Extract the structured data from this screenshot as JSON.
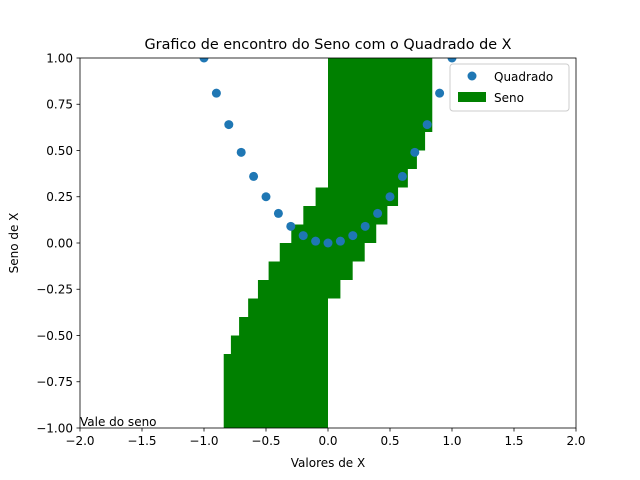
{
  "chart_data": {
    "type": "bar+scatter",
    "title": "Grafico de encontro do Seno com o Quadrado de X",
    "xlabel": "Valores de X",
    "ylabel": "Seno de X",
    "xlim": [
      -2.0,
      2.0
    ],
    "ylim": [
      -1.0,
      1.0
    ],
    "xticks": [
      "−2.0",
      "−1.5",
      "−1.0",
      "−0.5",
      "0.0",
      "0.5",
      "1.0",
      "1.5",
      "2.0"
    ],
    "yticks": [
      "−1.00",
      "−0.75",
      "−0.50",
      "−0.25",
      "0.00",
      "0.25",
      "0.50",
      "0.75",
      "1.00"
    ],
    "legend_position": "top-right",
    "annotation": {
      "text": "Vale do seno",
      "x": -2.0,
      "y": -1.0
    },
    "series": [
      {
        "name": "Quadrado",
        "kind": "scatter",
        "color": "#1f77b4",
        "x": [
          -1.0,
          -0.9,
          -0.8,
          -0.7,
          -0.6,
          -0.5,
          -0.4,
          -0.3,
          -0.2,
          -0.1,
          0.0,
          0.1,
          0.2,
          0.3,
          0.4,
          0.5,
          0.6,
          0.7,
          0.8,
          0.9,
          1.0
        ],
        "y": [
          1.0,
          0.81,
          0.64,
          0.49,
          0.36,
          0.25,
          0.16,
          0.09,
          0.04,
          0.01,
          0.0,
          0.01,
          0.04,
          0.09,
          0.16,
          0.25,
          0.36,
          0.49,
          0.64,
          0.81,
          1.0
        ]
      },
      {
        "name": "Seno",
        "kind": "barh",
        "color": "#008000",
        "left": 0.0,
        "y": [
          -1.0,
          -0.9,
          -0.8,
          -0.7,
          -0.6,
          -0.5,
          -0.4,
          -0.3,
          -0.2,
          -0.1,
          0.0,
          0.1,
          0.2,
          0.3,
          0.4,
          0.5,
          0.6,
          0.7,
          0.8,
          0.9,
          1.0
        ],
        "width": [
          -0.841,
          -0.783,
          -0.717,
          -0.644,
          -0.565,
          -0.479,
          -0.389,
          -0.296,
          -0.199,
          -0.1,
          0.0,
          0.1,
          0.199,
          0.296,
          0.389,
          0.479,
          0.565,
          0.644,
          0.717,
          0.783,
          0.841
        ],
        "bar_height": 0.8
      }
    ]
  }
}
